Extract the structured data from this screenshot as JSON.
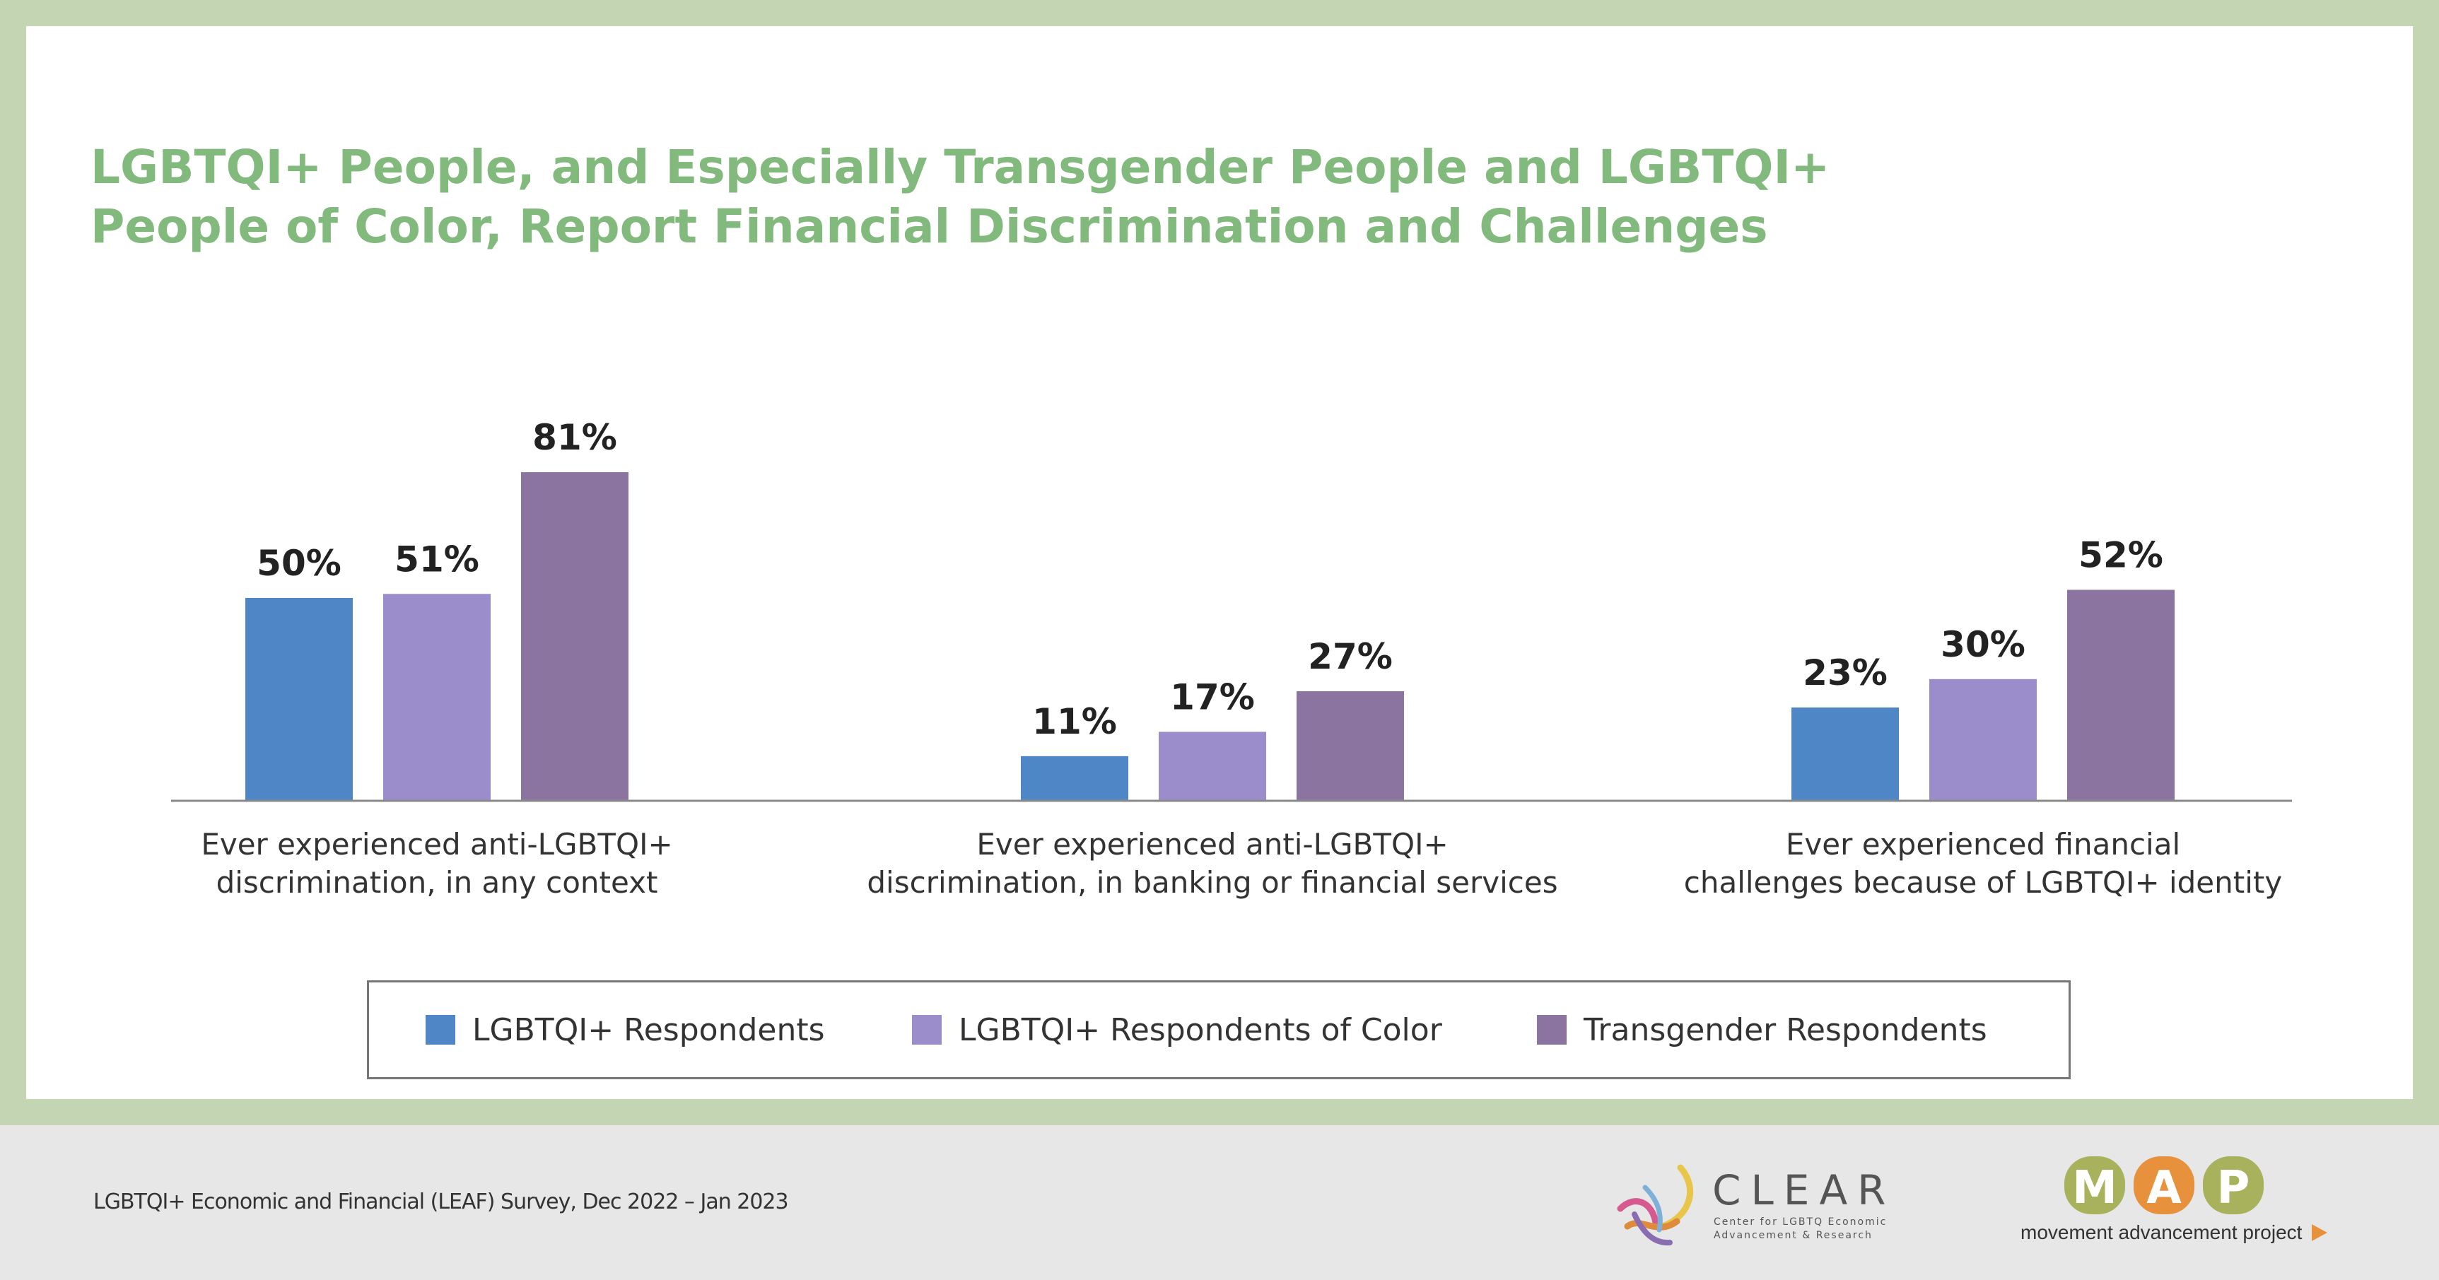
{
  "title": "LGBTQI+ People, and Especially Transgender People and LGBTQI+ People of Color, Report Financial Discrimination and Challenges",
  "chart_data": {
    "type": "bar",
    "title": "LGBTQI+ People, and Especially Transgender People and LGBTQI+ People of Color, Report Financial Discrimination and Challenges",
    "categories": [
      "Ever experienced anti-LGBTQI+ discrimination, in any context",
      "Ever experienced anti-LGBTQI+ discrimination, in banking or financial services",
      "Ever experienced financial challenges because of LGBTQI+ identity"
    ],
    "category_lines": [
      [
        "Ever experienced anti-LGBTQI+",
        "discrimination, in any context"
      ],
      [
        "Ever experienced anti-LGBTQI+",
        "discrimination, in banking or financial services"
      ],
      [
        "Ever experienced financial",
        "challenges because of LGBTQI+ identity"
      ]
    ],
    "series": [
      {
        "name": "LGBTQI+ Respondents",
        "color": "#4f86c6",
        "values": [
          50,
          11,
          23
        ]
      },
      {
        "name": "LGBTQI+ Respondents of Color",
        "color": "#9b8ccb",
        "values": [
          51,
          17,
          30
        ]
      },
      {
        "name": "Transgender Respondents",
        "color": "#8c74a0",
        "values": [
          81,
          27,
          52
        ]
      }
    ],
    "value_suffix": "%",
    "ylim": [
      0,
      100
    ],
    "grid": false,
    "legend_position": "bottom"
  },
  "footer": {
    "source": "LGBTQI+ Economic and Financial (LEAF) Survey, Dec 2022 – Jan 2023"
  },
  "logos": {
    "clear": {
      "word": "CLEAR",
      "subtitle_lines": [
        "Center for LGBTQ Economic",
        "Advancement & Research"
      ]
    },
    "map": {
      "letters": [
        "M",
        "A",
        "P"
      ],
      "tagline": "movement advancement project"
    }
  }
}
